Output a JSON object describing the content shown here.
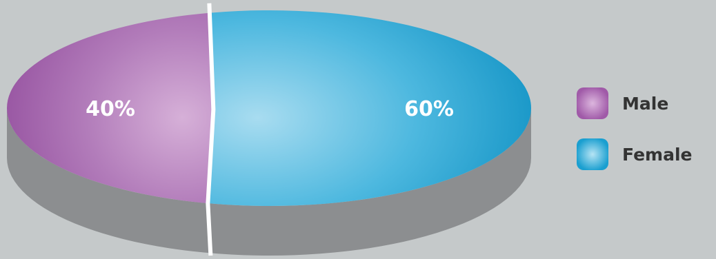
{
  "chart_data": {
    "type": "pie",
    "categories": [
      "Male",
      "Female"
    ],
    "values": [
      40,
      60
    ],
    "data_labels": [
      "40%",
      "60%"
    ],
    "colors": [
      "#a966b0",
      "#2aa6d3"
    ],
    "legend_placement": "right",
    "style": "3d"
  },
  "legend": {
    "items": [
      {
        "label": "Male",
        "color": "#a966b0"
      },
      {
        "label": "Female",
        "color": "#2aa6d3"
      }
    ]
  }
}
